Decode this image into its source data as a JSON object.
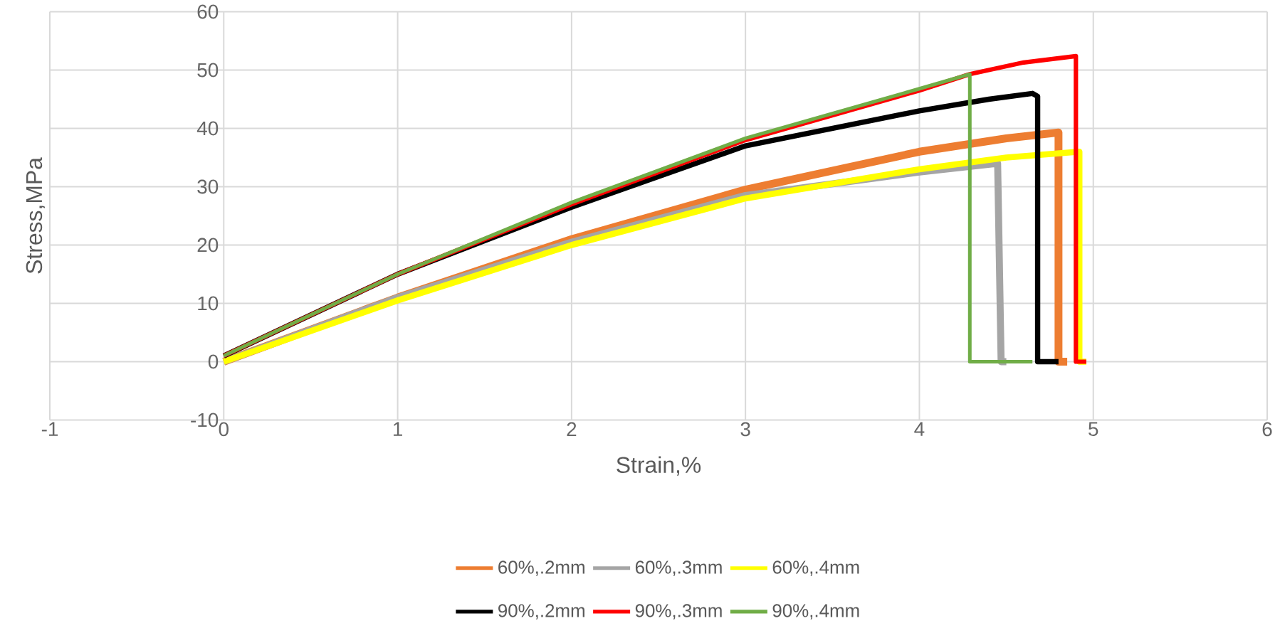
{
  "chart_data": {
    "type": "line",
    "xlabel": "Strain,%",
    "ylabel": "Stress,MPa",
    "xlim": [
      -1,
      6
    ],
    "ylim": [
      -10,
      60
    ],
    "xticks": [
      -1,
      0,
      1,
      2,
      3,
      4,
      5,
      6
    ],
    "yticks": [
      -10,
      0,
      10,
      20,
      30,
      40,
      50,
      60
    ],
    "grid": true,
    "legend": "bottom",
    "marker": "none",
    "line_style": "solid",
    "series": [
      {
        "name": "60%,.2mm",
        "color": "#ed7d31",
        "x": [
          0,
          1,
          2,
          3,
          4,
          4.5,
          4.8,
          4.8,
          4.85
        ],
        "values": [
          0,
          11,
          21,
          29.5,
          36,
          38.3,
          39.3,
          0,
          0
        ]
      },
      {
        "name": "60%,.3mm",
        "color": "#a5a5a5",
        "x": [
          0,
          1,
          2,
          3,
          4,
          4.45,
          4.47,
          4.5
        ],
        "values": [
          0,
          11,
          20.5,
          28.5,
          32.5,
          34,
          0,
          0
        ]
      },
      {
        "name": "60%,.4mm",
        "color": "#ffff00",
        "x": [
          0,
          1,
          2,
          3,
          4,
          4.5,
          4.92,
          4.92,
          4.96
        ],
        "values": [
          0,
          10.5,
          20,
          28,
          33,
          35,
          36,
          0,
          0
        ]
      },
      {
        "name": "90%,.2mm",
        "color": "#000000",
        "x": [
          0,
          1,
          2,
          3,
          4,
          4.4,
          4.65,
          4.68,
          4.68,
          4.8
        ],
        "values": [
          1,
          15,
          26.5,
          37,
          43,
          45,
          46,
          45.5,
          0,
          0
        ]
      },
      {
        "name": "90%,.3mm",
        "color": "#ff0000",
        "x": [
          0,
          1,
          2,
          3,
          4,
          4.29,
          4.6,
          4.9,
          4.9,
          4.96
        ],
        "values": [
          1,
          15,
          27,
          38,
          46.5,
          49.3,
          51.3,
          52.4,
          0,
          0
        ]
      },
      {
        "name": "90%,.4mm",
        "color": "#70ad47",
        "x": [
          0,
          1,
          2,
          3,
          4,
          4.29,
          4.29,
          4.65
        ],
        "values": [
          1,
          15,
          27.3,
          38.3,
          46.8,
          49.3,
          0,
          0
        ]
      }
    ]
  }
}
